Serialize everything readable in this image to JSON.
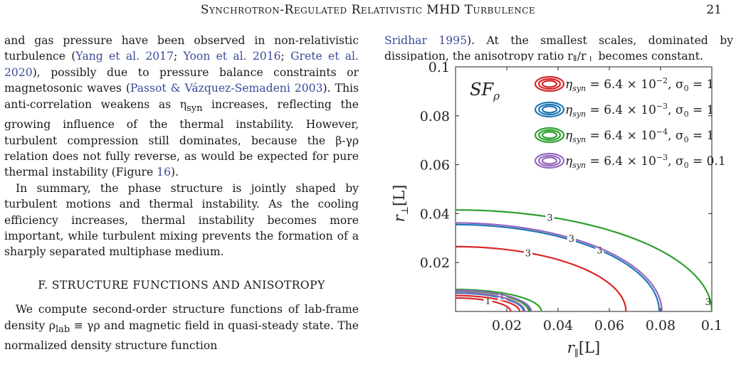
{
  "header": {
    "running_title": "Synchrotron-Regulated Relativistic MHD Turbulence",
    "page_number": "21"
  },
  "left_column": {
    "para1": {
      "t1": "and gas pressure have been observed in non-relativistic turbulence (",
      "c1": "Yang et al. 2017",
      "s1": "; ",
      "c2": "Yoon et al. 2016",
      "s2": "; ",
      "c3": "Grete et al. 2020",
      "t2": "), possibly due to pressure balance constraints or magnetosonic waves (",
      "c4": "Passot & Vázquez-Semadeni 2003",
      "t3": "). This anti-correlation weakens as η",
      "sub1": "syn",
      "t4": " increases, reflecting the growing influence of the thermal instability. However, turbulent compression still dominates, because the β-γρ relation does not fully reverse, as would be expected for pure thermal instability (Figure ",
      "c5": "16",
      "t5": ")."
    },
    "para2": "In summary, the phase structure is jointly shaped by turbulent motions and thermal instability. As the cooling efficiency increases, thermal instability becomes more important, while turbulent mixing prevents the formation of a sharply separated multiphase medium.",
    "section_heading": "F. STRUCTURE FUNCTIONS AND ANISOTROPY",
    "para3": {
      "t1": "We compute second-order structure functions of lab-frame density ρ",
      "sub1": "lab",
      "t2": " ≡ γρ and magnetic field in quasi-steady state. The normalized density structure function"
    }
  },
  "right_column": {
    "c1": "Sridhar 1995",
    "t1": "). At the smallest scales, dominated by dissipation, the anisotropy ratio r",
    "sub1": "∥",
    "t2": "/r",
    "sub2": "⊥",
    "t3": " becomes constant."
  },
  "chart_data": {
    "type": "contour",
    "panel_label": "SF",
    "panel_label_sub": "ρ",
    "xlabel": "r",
    "xlabel_sub": "∥",
    "xlabel_unit": "[L]",
    "ylabel": "r",
    "ylabel_sub": "⊥",
    "ylabel_unit": "[L]",
    "xlim": [
      0,
      0.1
    ],
    "ylim": [
      0,
      0.1
    ],
    "xticks": [
      0.02,
      0.04,
      0.06,
      0.08,
      0.1
    ],
    "xtick_labels": [
      "0.02",
      "0.04",
      "0.06",
      "0.08",
      "0.1"
    ],
    "yticks": [
      0.02,
      0.04,
      0.06,
      0.08,
      0.1
    ],
    "ytick_labels": [
      "0.02",
      "0.04",
      "0.06",
      "0.08",
      "0.1"
    ],
    "legend_position": "top-right",
    "series": [
      {
        "name": "η_syn = 6.4 × 10^-2, σ0 = 1",
        "legend": {
          "eta": "η",
          "eta_sub": "syn",
          "eq": " = 6.4 × 10",
          "exp": "−2",
          "sig": ", σ",
          "sig_sub": "0",
          "sig_val": " = 1"
        },
        "color": "#d62728",
        "contours": [
          {
            "level": "3",
            "x_int": 0.0665,
            "y_int": 0.0265
          },
          {
            "level": "1",
            "x_int": 0.0215,
            "y_int": 0.0055
          },
          {
            "level": "",
            "x_int": 0.025,
            "y_int": 0.0065
          }
        ]
      },
      {
        "name": "η_syn = 6.4 × 10^-3, σ0 = 1",
        "legend": {
          "eta": "η",
          "eta_sub": "syn",
          "eq": " = 6.4 × 10",
          "exp": "−3",
          "sig": ", σ",
          "sig_sub": "0",
          "sig_val": " = 1"
        },
        "color": "#1f77b4",
        "contours": [
          {
            "level": "3",
            "x_int": 0.0795,
            "y_int": 0.0355
          },
          {
            "level": "",
            "x_int": 0.0265,
            "y_int": 0.0075
          },
          {
            "level": "",
            "x_int": 0.029,
            "y_int": 0.0085
          }
        ]
      },
      {
        "name": "η_syn = 6.4 × 10^-4, σ0 = 1",
        "legend": {
          "eta": "η",
          "eta_sub": "syn",
          "eq": " = 6.4 × 10",
          "exp": "−4",
          "sig": ", σ",
          "sig_sub": "0",
          "sig_val": " = 1"
        },
        "color": "#2ca02c",
        "contours": [
          {
            "level": "3",
            "x_int": 0.1,
            "y_int": 0.0415
          },
          {
            "level": "1",
            "x_int": 0.0285,
            "y_int": 0.0085
          },
          {
            "level": "",
            "x_int": 0.0335,
            "y_int": 0.009
          }
        ]
      },
      {
        "name": "η_syn = 6.4 × 10^-3, σ0 = 0.1",
        "legend": {
          "eta": "η",
          "eta_sub": "syn",
          "eq": " = 6.4 × 10",
          "exp": "−3",
          "sig": ", σ",
          "sig_sub": "0",
          "sig_val": " = 0.1"
        },
        "color": "#9467bd",
        "contours": [
          {
            "level": "3",
            "x_int": 0.0805,
            "y_int": 0.0362
          },
          {
            "level": "",
            "x_int": 0.027,
            "y_int": 0.0078
          },
          {
            "level": "",
            "x_int": 0.0295,
            "y_int": 0.0087
          }
        ]
      }
    ]
  }
}
